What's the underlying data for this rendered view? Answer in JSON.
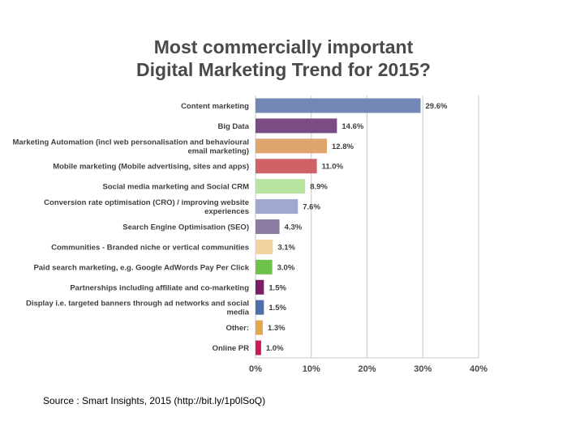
{
  "page": {
    "title_line1": "Most commercially important",
    "title_line2": "Digital Marketing Trend for 2015?",
    "source": "Source : Smart Insights, 2015 (http://bit.ly/1p0lSoQ)"
  },
  "chart_data": {
    "type": "bar",
    "orientation": "horizontal",
    "title": "Most commercially important Digital Marketing Trend for 2015?",
    "categories": [
      [
        "Content marketing"
      ],
      [
        "Big Data"
      ],
      [
        "Marketing Automation (incl web personalisation and behavioural",
        "email marketing)"
      ],
      [
        "Mobile marketing (Mobile advertising, sites and apps)"
      ],
      [
        "Social media marketing and Social CRM"
      ],
      [
        "Conversion rate optimisation (CRO) / improving website",
        "experiences"
      ],
      [
        "Search Engine Optimisation (SEO)"
      ],
      [
        "Communities - Branded niche or vertical communities"
      ],
      [
        "Paid search marketing, e.g. Google AdWords Pay Per Click"
      ],
      [
        "Partnerships including affiliate and co-marketing"
      ],
      [
        "Display i.e. targeted banners through ad networks and social",
        "media"
      ],
      [
        "Other:"
      ],
      [
        "Online PR"
      ]
    ],
    "values": [
      29.6,
      14.6,
      12.8,
      11.0,
      8.9,
      7.6,
      4.3,
      3.1,
      3.0,
      1.5,
      1.5,
      1.3,
      1.0
    ],
    "value_labels": [
      "29.6%",
      "14.6%",
      "12.8%",
      "11.0%",
      "8.9%",
      "7.6%",
      "4.3%",
      "3.1%",
      "3.0%",
      "1.5%",
      "1.5%",
      "1.3%",
      "1.0%"
    ],
    "colors": [
      "#7387b5",
      "#7b4c83",
      "#e0a46e",
      "#cf6266",
      "#b8e3a0",
      "#a1a8cf",
      "#8b7aa1",
      "#f2d29e",
      "#6cc24a",
      "#7a1f66",
      "#4f6fa8",
      "#e2a850",
      "#cc1a52"
    ],
    "xlim": [
      0,
      40
    ],
    "xticks": [
      0,
      10,
      20,
      30,
      40
    ],
    "xtick_labels": [
      "0%",
      "10%",
      "20%",
      "30%",
      "40%"
    ],
    "grid": true,
    "xlabel": "",
    "ylabel": ""
  }
}
